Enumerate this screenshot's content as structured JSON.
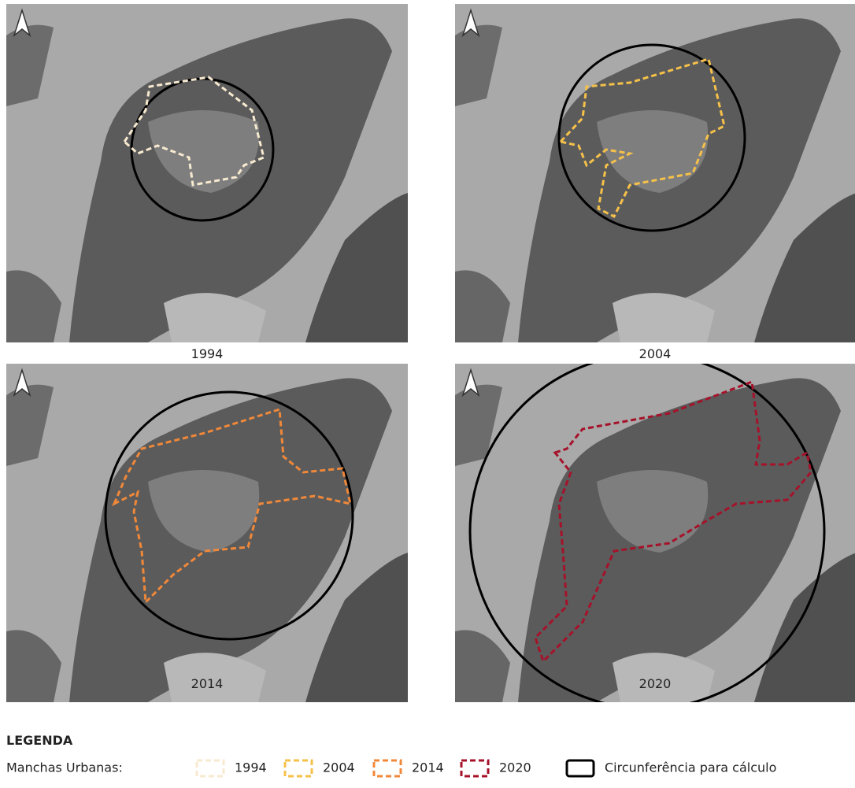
{
  "panels": [
    {
      "label": "1994"
    },
    {
      "label": "2004"
    },
    {
      "label": "2014"
    },
    {
      "label": "2020"
    }
  ],
  "legend": {
    "title": "LEGENDA",
    "label": "Manchas Urbanas:",
    "items": [
      {
        "label": "1994",
        "color": "#f7ead0"
      },
      {
        "label": "2004",
        "color": "#f5c14a"
      },
      {
        "label": "2014",
        "color": "#f0883a"
      },
      {
        "label": "2020",
        "color": "#a5122a"
      }
    ],
    "circle_label": "Circunferência para cálculo"
  }
}
